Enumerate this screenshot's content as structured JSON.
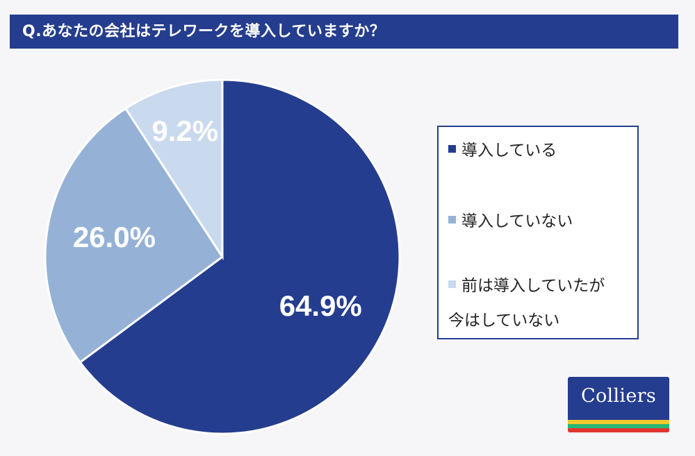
{
  "header": {
    "title": "Q.あなたの会社はテレワークを導入していますか？"
  },
  "chart_data": {
    "type": "pie",
    "title": "Q.あなたの会社はテレワークを導入していますか？",
    "slices": [
      {
        "label": "導入している",
        "value": 64.9,
        "display": "64.9%",
        "color": "#253d8e",
        "label_color": "#ffffff"
      },
      {
        "label": "導入していない",
        "value": 26.0,
        "display": "26.0%",
        "color": "#95b2d6",
        "label_color": "#ffffff"
      },
      {
        "label": "前は導入していたが\n今はしていない",
        "value": 9.2,
        "display": "9.2%",
        "color": "#c9d9ee",
        "label_color": "#ffffff"
      }
    ],
    "start": "12 o'clock",
    "direction": "clockwise",
    "legend_position": "right"
  },
  "legend": {
    "items": [
      {
        "label": "導入している",
        "color": "#253d8e"
      },
      {
        "label": "導入していない",
        "color": "#95b2d6"
      },
      {
        "label": "前は導入していたが\n今はしていない",
        "color": "#c9d9ee"
      }
    ]
  },
  "logo": {
    "text": "Colliers",
    "stripe_colors": [
      "#f3c92c",
      "#2bb673",
      "#e3342f"
    ]
  }
}
